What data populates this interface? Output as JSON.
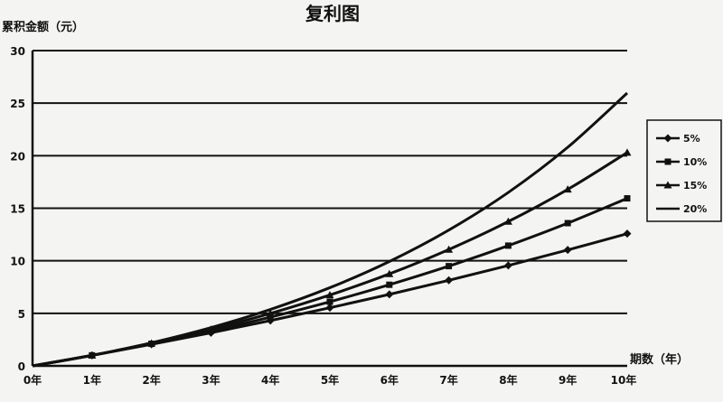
{
  "chart_data": {
    "type": "line",
    "title": "复利图",
    "ylabel": "累积金额（元）",
    "xlabel": "期数（年）",
    "categories": [
      "0年",
      "1年",
      "2年",
      "3年",
      "4年",
      "5年",
      "6年",
      "7年",
      "8年",
      "9年",
      "10年"
    ],
    "ylim": [
      0,
      30
    ],
    "yticks": [
      0,
      5,
      10,
      15,
      20,
      25,
      30
    ],
    "grid": "horizontal",
    "legend_position": "right",
    "series": [
      {
        "name": "5%",
        "marker": "diamond",
        "values": [
          0,
          1.0,
          2.05,
          3.15,
          4.31,
          5.53,
          6.8,
          8.14,
          9.55,
          11.03,
          12.58
        ]
      },
      {
        "name": "10%",
        "marker": "square",
        "values": [
          0,
          1.0,
          2.1,
          3.31,
          4.64,
          6.1,
          7.72,
          9.49,
          11.44,
          13.58,
          15.94
        ]
      },
      {
        "name": "15%",
        "marker": "triangle",
        "values": [
          0,
          1.0,
          2.15,
          3.47,
          4.99,
          6.74,
          8.75,
          11.07,
          13.73,
          16.79,
          20.3
        ]
      },
      {
        "name": "20%",
        "marker": "none",
        "values": [
          0,
          1.0,
          2.2,
          3.64,
          5.37,
          7.44,
          9.93,
          12.92,
          16.5,
          20.8,
          25.96
        ]
      }
    ]
  },
  "colors": {
    "line": "#111111",
    "grid": "#111111",
    "background": "#f4f4f2"
  }
}
